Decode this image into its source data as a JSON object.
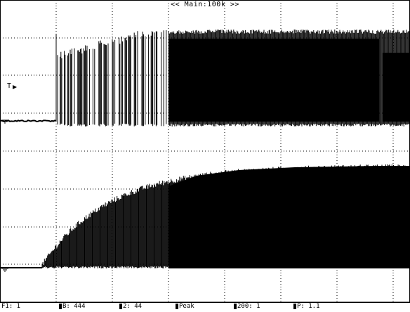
{
  "header": {
    "timebase_label": "<< Main:100k >>"
  },
  "trace_labels": {
    "trigger_marker": "T"
  },
  "status_segments": [
    {
      "label": "F1: 1",
      "block": false
    },
    {
      "label": "B: 444",
      "block": true
    },
    {
      "label": "2: 44",
      "block": true
    },
    {
      "label": "Peak",
      "block": true
    },
    {
      "label": "200: 1",
      "block": true
    },
    {
      "label": "P: 1.1",
      "block": true
    }
  ],
  "waveforms": {
    "channel_1": {
      "description_of_shape": "flat baseline, spike, then burst of pulses rising to plateau",
      "baseline_time_fraction": 0.14,
      "plateau_reached_fraction": 0.45
    },
    "channel_2": {
      "description_of_shape": "flat baseline then rising envelope to plateau",
      "rise_start_fraction": 0.12,
      "plateau_reached_fraction": 0.5
    }
  }
}
